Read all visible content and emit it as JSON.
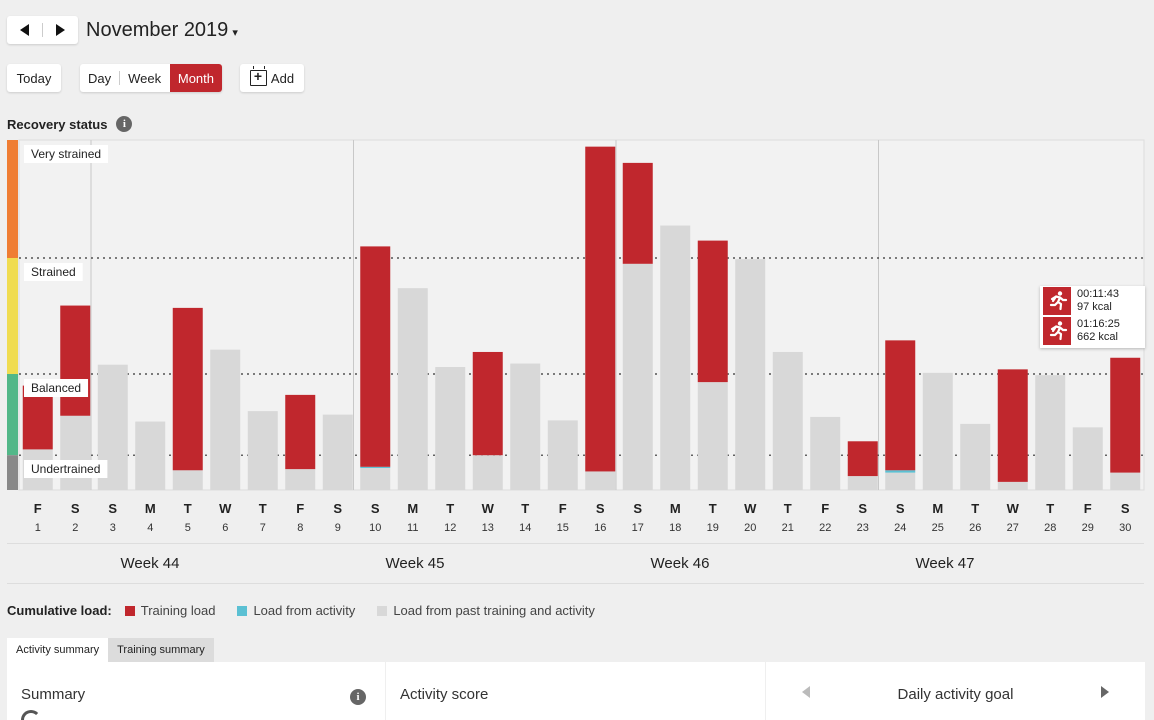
{
  "header": {
    "month_title": "November 2019",
    "caret": "▾"
  },
  "toolbar": {
    "today_label": "Today",
    "day_label": "Day",
    "week_label": "Week",
    "month_label": "Month",
    "add_label": "Add"
  },
  "recovery": {
    "title": "Recovery status",
    "info": "i"
  },
  "colors": {
    "training": "#c0272d",
    "activity": "#5bc0d3",
    "past": "#d8d8d8",
    "very_strained": "#ef7d33",
    "strained": "#f0dc50",
    "balanced": "#52b788",
    "undertrained": "#888888"
  },
  "chart_data": {
    "type": "bar",
    "stacked": true,
    "zones": [
      "Very strained",
      "Strained",
      "Balanced",
      "Undertrained"
    ],
    "days": [
      {
        "d": "F",
        "n": "1",
        "past": 0.35,
        "activity": 0,
        "training": 0.55
      },
      {
        "d": "S",
        "n": "2",
        "past": 0.64,
        "activity": 0,
        "training": 0.95
      },
      {
        "d": "S",
        "n": "3",
        "past": 1.08,
        "activity": 0,
        "training": 0
      },
      {
        "d": "M",
        "n": "4",
        "past": 0.59,
        "activity": 0,
        "training": 0
      },
      {
        "d": "T",
        "n": "5",
        "past": 0.17,
        "activity": 0,
        "training": 1.4
      },
      {
        "d": "W",
        "n": "6",
        "past": 1.21,
        "activity": 0,
        "training": 0
      },
      {
        "d": "T",
        "n": "7",
        "past": 0.68,
        "activity": 0,
        "training": 0
      },
      {
        "d": "F",
        "n": "8",
        "past": 0.18,
        "activity": 0,
        "training": 0.64
      },
      {
        "d": "S",
        "n": "9",
        "past": 0.65,
        "activity": 0,
        "training": 0
      },
      {
        "d": "S",
        "n": "10",
        "past": 0.19,
        "activity": 0.01,
        "training": 1.9
      },
      {
        "d": "M",
        "n": "11",
        "past": 1.74,
        "activity": 0,
        "training": 0
      },
      {
        "d": "T",
        "n": "12",
        "past": 1.06,
        "activity": 0,
        "training": 0
      },
      {
        "d": "W",
        "n": "13",
        "past": 0.3,
        "activity": 0,
        "training": 0.89
      },
      {
        "d": "T",
        "n": "14",
        "past": 1.09,
        "activity": 0,
        "training": 0
      },
      {
        "d": "F",
        "n": "15",
        "past": 0.6,
        "activity": 0,
        "training": 0
      },
      {
        "d": "S",
        "n": "16",
        "past": 0.16,
        "activity": 0,
        "training": 2.8
      },
      {
        "d": "S",
        "n": "17",
        "past": 1.95,
        "activity": 0,
        "training": 0.87
      },
      {
        "d": "M",
        "n": "18",
        "past": 2.28,
        "activity": 0,
        "training": 0
      },
      {
        "d": "T",
        "n": "19",
        "past": 0.93,
        "activity": 0,
        "training": 1.22
      },
      {
        "d": "W",
        "n": "20",
        "past": 1.99,
        "activity": 0,
        "training": 0
      },
      {
        "d": "T",
        "n": "21",
        "past": 1.19,
        "activity": 0,
        "training": 0
      },
      {
        "d": "F",
        "n": "22",
        "past": 0.63,
        "activity": 0,
        "training": 0
      },
      {
        "d": "S",
        "n": "23",
        "past": 0.12,
        "activity": 0,
        "training": 0.3
      },
      {
        "d": "S",
        "n": "24",
        "past": 0.15,
        "activity": 0.02,
        "training": 1.12
      },
      {
        "d": "M",
        "n": "25",
        "past": 1.01,
        "activity": 0,
        "training": 0
      },
      {
        "d": "T",
        "n": "26",
        "past": 0.57,
        "activity": 0,
        "training": 0
      },
      {
        "d": "W",
        "n": "27",
        "past": 0.07,
        "activity": 0,
        "training": 0.97
      },
      {
        "d": "T",
        "n": "28",
        "past": 0.99,
        "activity": 0,
        "training": 0
      },
      {
        "d": "F",
        "n": "29",
        "past": 0.54,
        "activity": 0,
        "training": 0
      },
      {
        "d": "S",
        "n": "30",
        "past": 0.15,
        "activity": 0,
        "training": 0.99
      }
    ],
    "weeks": [
      "Week 44",
      "Week 45",
      "Week 46",
      "Week 47"
    ],
    "legend_title": "Cumulative load:",
    "legend": [
      "Training load",
      "Load from activity",
      "Load from past training and activity"
    ]
  },
  "tooltip": {
    "rows": [
      {
        "time": "00:11:43",
        "kcal": "97 kcal"
      },
      {
        "time": "01:16:25",
        "kcal": "662 kcal"
      }
    ]
  },
  "tabs": [
    "Activity summary",
    "Training summary"
  ],
  "panels": {
    "summary": "Summary",
    "activity_score": "Activity score",
    "daily_goal": "Daily activity goal"
  }
}
